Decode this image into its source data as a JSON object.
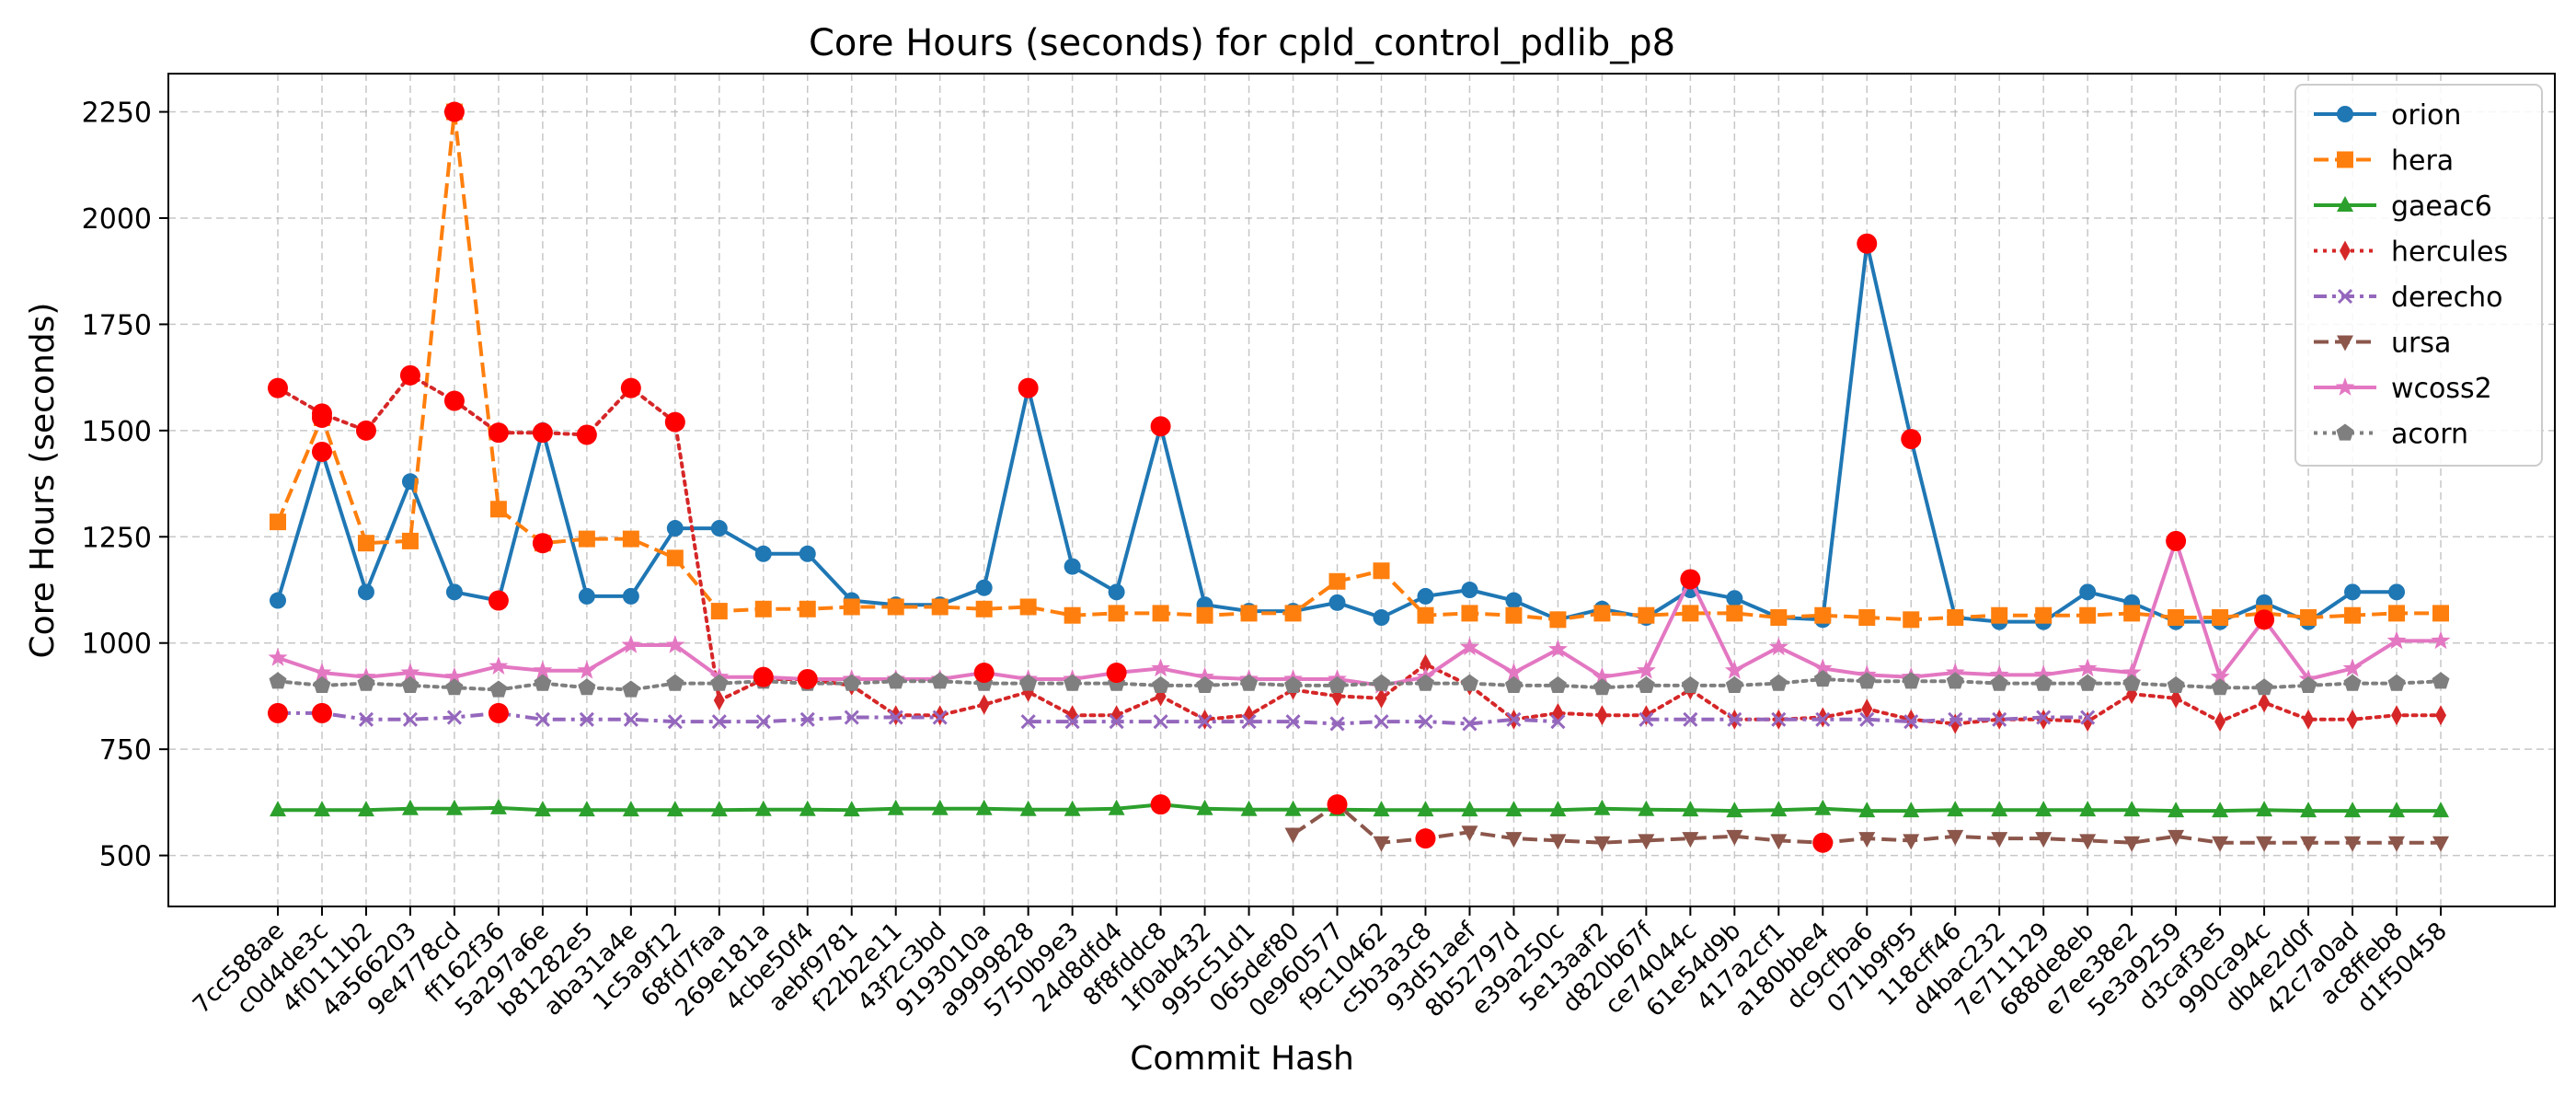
{
  "chart_data": {
    "type": "line",
    "title": "Core Hours (seconds) for cpld_control_pdlib_p8",
    "xlabel": "Commit Hash",
    "ylabel": "Core Hours (seconds)",
    "ylim": [
      380,
      2340
    ],
    "yticks": [
      500,
      750,
      1000,
      1250,
      1500,
      1750,
      2000,
      2250
    ],
    "grid": true,
    "legend_position": "top-right",
    "categories": [
      "7cc588ae",
      "c0d4de3c",
      "4f0111b2",
      "4a566203",
      "9e4778cd",
      "ff162f36",
      "5a297a6e",
      "b81282e5",
      "aba31a4e",
      "1c5a9f12",
      "68fd7faa",
      "269e181a",
      "4cbe50f4",
      "aebf9781",
      "f22b2e11",
      "43f2c3bd",
      "9193010a",
      "a9999828",
      "5750b9e3",
      "24d8dfd4",
      "8f8fddc8",
      "1f0ab432",
      "995c51d1",
      "065def80",
      "0e960577",
      "f9c10462",
      "c5b3a3c8",
      "93d51aef",
      "8b52797d",
      "e39a250c",
      "5e13aaf2",
      "d820b67f",
      "ce74044c",
      "61e54d9b",
      "417a2cf1",
      "a180bbe4",
      "dc9cfba6",
      "071b9f95",
      "118cff46",
      "d4bac232",
      "7e711129",
      "688de8eb",
      "e7ee38e2",
      "5e3a9259",
      "d3caf3e5",
      "990ca94c",
      "db4e2d0f",
      "42c7a0ad",
      "ac8ffeb8",
      "d1f50458"
    ],
    "series": [
      {
        "name": "orion",
        "color": "#1f77b4",
        "marker": "circle",
        "dash": "solid",
        "values": [
          1100,
          1450,
          1120,
          1380,
          1120,
          1100,
          1500,
          1110,
          1110,
          1270,
          1270,
          1210,
          1210,
          1100,
          1090,
          1090,
          1130,
          1600,
          1180,
          1120,
          1510,
          1090,
          1075,
          1075,
          1095,
          1060,
          1110,
          1125,
          1100,
          1055,
          1080,
          1060,
          1125,
          1105,
          1060,
          1055,
          1940,
          1480,
          1060,
          1050,
          1050,
          1120,
          1095,
          1050,
          1050,
          1095,
          1050,
          1120,
          1120,
          null
        ],
        "highlights": [
          1,
          5,
          17,
          20,
          36,
          37
        ]
      },
      {
        "name": "hera",
        "color": "#ff7f0e",
        "marker": "square",
        "dash": "dashed",
        "values": [
          1285,
          1530,
          1235,
          1240,
          2250,
          1315,
          1235,
          1245,
          1245,
          1200,
          1075,
          1080,
          1080,
          1085,
          1085,
          1085,
          1080,
          1085,
          1065,
          1070,
          1070,
          1065,
          1070,
          1070,
          1145,
          1170,
          1065,
          1070,
          1065,
          1055,
          1070,
          1065,
          1070,
          1070,
          1060,
          1065,
          1060,
          1055,
          1060,
          1065,
          1065,
          1065,
          1070,
          1060,
          1060,
          1070,
          1060,
          1065,
          1070,
          1070
        ],
        "highlights": [
          1,
          4,
          6
        ]
      },
      {
        "name": "gaeac6",
        "color": "#2ca02c",
        "marker": "triangle-up",
        "dash": "solid",
        "values": [
          607,
          607,
          607,
          610,
          610,
          612,
          607,
          607,
          607,
          607,
          607,
          608,
          608,
          607,
          610,
          610,
          610,
          608,
          608,
          610,
          620,
          610,
          608,
          608,
          608,
          607,
          607,
          607,
          607,
          607,
          610,
          608,
          607,
          605,
          607,
          610,
          605,
          605,
          607,
          607,
          607,
          607,
          607,
          605,
          605,
          607,
          605,
          605,
          605,
          605
        ],
        "highlights": [
          20
        ]
      },
      {
        "name": "hercules",
        "color": "#d62728",
        "marker": "thin-diamond",
        "dash": "dotted",
        "values": [
          1600,
          1540,
          1500,
          1630,
          1570,
          1495,
          1495,
          1490,
          1600,
          1520,
          865,
          915,
          915,
          900,
          830,
          830,
          855,
          885,
          830,
          830,
          875,
          820,
          830,
          890,
          875,
          870,
          950,
          900,
          820,
          835,
          830,
          830,
          890,
          820,
          820,
          825,
          845,
          820,
          810,
          820,
          820,
          815,
          880,
          870,
          815,
          860,
          820,
          820,
          830,
          830
        ],
        "highlights": [
          0,
          1,
          2,
          3,
          4,
          5,
          6,
          7,
          8,
          9
        ]
      },
      {
        "name": "derecho",
        "color": "#9467bd",
        "marker": "x",
        "dash": "dashdot",
        "values": [
          835,
          835,
          820,
          820,
          825,
          835,
          820,
          820,
          820,
          815,
          815,
          815,
          820,
          825,
          825,
          825,
          null,
          815,
          815,
          815,
          815,
          815,
          815,
          815,
          810,
          815,
          815,
          810,
          820,
          815,
          null,
          820,
          820,
          820,
          820,
          820,
          820,
          815,
          820,
          820,
          825,
          825,
          null,
          null,
          null,
          null,
          null,
          null,
          null,
          null
        ],
        "highlights": [
          0,
          1,
          5
        ]
      },
      {
        "name": "ursa",
        "color": "#8c564b",
        "marker": "triangle-down",
        "dash": "dashed",
        "values": [
          null,
          null,
          null,
          null,
          null,
          null,
          null,
          null,
          null,
          null,
          null,
          null,
          null,
          null,
          null,
          null,
          null,
          null,
          null,
          null,
          null,
          null,
          null,
          550,
          620,
          530,
          540,
          555,
          540,
          535,
          530,
          535,
          540,
          545,
          535,
          530,
          540,
          535,
          545,
          540,
          540,
          535,
          530,
          545,
          530,
          530,
          530,
          530,
          530,
          530
        ],
        "highlights": [
          24,
          26,
          35
        ]
      },
      {
        "name": "wcoss2",
        "color": "#e377c2",
        "marker": "star",
        "dash": "solid",
        "values": [
          965,
          930,
          920,
          930,
          920,
          945,
          935,
          935,
          995,
          995,
          920,
          920,
          915,
          915,
          915,
          915,
          930,
          915,
          915,
          930,
          940,
          920,
          915,
          915,
          915,
          900,
          920,
          990,
          930,
          985,
          920,
          935,
          1150,
          935,
          990,
          940,
          925,
          920,
          930,
          925,
          925,
          940,
          930,
          1240,
          920,
          1055,
          915,
          940,
          1005,
          1005
        ],
        "highlights": [
          11,
          12,
          16,
          19,
          32,
          43,
          45
        ]
      },
      {
        "name": "acorn",
        "color": "#7f7f7f",
        "marker": "pentagon",
        "dash": "dotted",
        "values": [
          910,
          900,
          905,
          900,
          895,
          890,
          905,
          895,
          890,
          905,
          905,
          910,
          905,
          905,
          910,
          910,
          905,
          905,
          905,
          905,
          900,
          900,
          905,
          900,
          900,
          905,
          905,
          905,
          900,
          900,
          895,
          900,
          900,
          900,
          905,
          915,
          910,
          910,
          910,
          905,
          905,
          905,
          905,
          900,
          895,
          895,
          900,
          905,
          905,
          910
        ],
        "highlights": []
      }
    ]
  }
}
